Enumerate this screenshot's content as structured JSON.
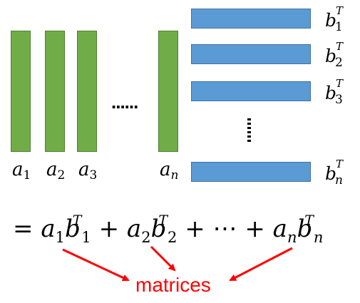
{
  "columns": {
    "labels": [
      {
        "base": "a",
        "sub": "1"
      },
      {
        "base": "a",
        "sub": "2"
      },
      {
        "base": "a",
        "sub": "3"
      },
      {
        "base": "a",
        "sub": "n"
      }
    ],
    "ellipsis": "......"
  },
  "rows": {
    "labels": [
      {
        "base": "b",
        "sup": "T",
        "sub": "1"
      },
      {
        "base": "b",
        "sup": "T",
        "sub": "2"
      },
      {
        "base": "b",
        "sup": "T",
        "sub": "3"
      },
      {
        "base": "b",
        "sup": "T",
        "sub": "n"
      }
    ]
  },
  "equation": {
    "equals": "=",
    "term1": {
      "a": "a",
      "a_sub": "1",
      "b": "b",
      "b_sup": "T",
      "b_sub": "1"
    },
    "plus1": "+",
    "term2": {
      "a": "a",
      "a_sub": "2",
      "b": "b",
      "b_sup": "T",
      "b_sub": "2"
    },
    "plus2": "+",
    "cdots": "⋯",
    "plus3": "+",
    "term3": {
      "a": "a",
      "a_sub": "n",
      "b": "b",
      "b_sup": "T",
      "b_sub": "n"
    }
  },
  "annotation": {
    "label": "matrices",
    "color": "#ff0000"
  },
  "colors": {
    "column_fill": "#70ad47",
    "row_fill": "#5b9bd5"
  }
}
